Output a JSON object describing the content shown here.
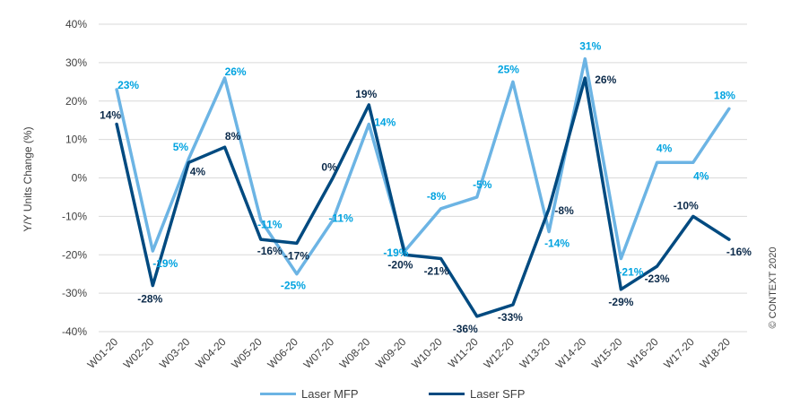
{
  "chart_data": {
    "type": "line",
    "categories": [
      "W01-20",
      "W02-20",
      "W03-20",
      "W04-20",
      "W05-20",
      "W06-20",
      "W07-20",
      "W08-20",
      "W09-20",
      "W10-20",
      "W11-20",
      "W12-20",
      "W13-20",
      "W14-20",
      "W15-20",
      "W16-20",
      "W17-20",
      "W18-20"
    ],
    "series": [
      {
        "name": "Laser MFP",
        "color": "#6cb4e4",
        "label_color": "#00a3e0",
        "values": [
          23,
          -19,
          5,
          26,
          -11,
          -25,
          -11,
          14,
          -19,
          -8,
          -5,
          25,
          -14,
          31,
          -21,
          4,
          4,
          18
        ],
        "labels": [
          "23%",
          "-19%",
          "5%",
          "26%",
          "-11%",
          "-25%",
          "-11%",
          "14%",
          "-19%",
          "-8%",
          "-5%",
          "25%",
          "-14%",
          "31%",
          "-21%",
          "4%",
          "4%",
          "18%"
        ]
      },
      {
        "name": "Laser SFP",
        "color": "#004a80",
        "label_color": "#0b2a4a",
        "values": [
          14,
          -28,
          4,
          8,
          -16,
          -17,
          0,
          19,
          -20,
          -21,
          -36,
          -33,
          -8,
          26,
          -29,
          -23,
          -10,
          -16
        ],
        "labels": [
          "14%",
          "-28%",
          "4%",
          "8%",
          "-16%",
          "-17%",
          "0%",
          "19%",
          "-20%",
          "-21%",
          "-36%",
          "-33%",
          "-8%",
          "26%",
          "-29%",
          "-23%",
          "-10%",
          "-16%"
        ]
      }
    ],
    "ylabel": "Y/Y Units Change (%)",
    "ylim": [
      -40,
      40
    ],
    "yticks": [
      -40,
      -30,
      -20,
      -10,
      0,
      10,
      20,
      30,
      40
    ],
    "ytick_labels": [
      "-40%",
      "-30%",
      "-20%",
      "-10%",
      "0%",
      "10%",
      "20%",
      "30%",
      "40%"
    ],
    "grid": true,
    "legend_position": "bottom"
  },
  "copyright": "© CONTEXT 2020"
}
